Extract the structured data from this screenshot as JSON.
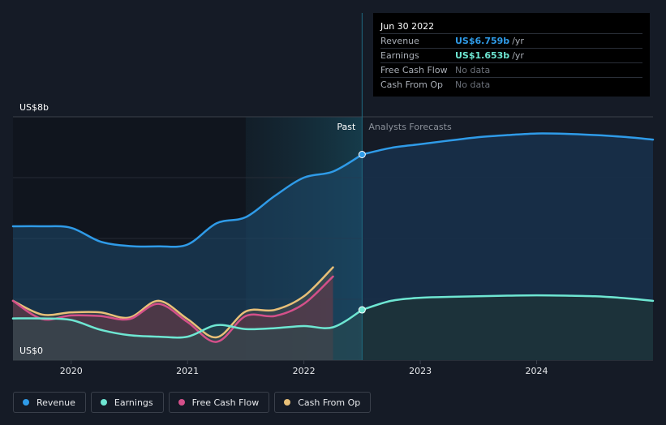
{
  "colors": {
    "revenue": "#2f9be8",
    "earnings": "#6ee6d2",
    "free_cash_flow": "#d4508a",
    "cash_from_op": "#e8c078",
    "background": "#151b26"
  },
  "tooltip": {
    "date": "Jun 30 2022",
    "rows": [
      {
        "label": "Revenue",
        "value": "US$6.759b",
        "unit": "/yr",
        "color": "#2f9be8"
      },
      {
        "label": "Earnings",
        "value": "US$1.653b",
        "unit": "/yr",
        "color": "#6ee6d2"
      },
      {
        "label": "Free Cash Flow",
        "value": "No data",
        "unit": "",
        "color": ""
      },
      {
        "label": "Cash From Op",
        "value": "No data",
        "unit": "",
        "color": ""
      }
    ]
  },
  "legend": [
    {
      "label": "Revenue",
      "color": "#2f9be8"
    },
    {
      "label": "Earnings",
      "color": "#6ee6d2"
    },
    {
      "label": "Free Cash Flow",
      "color": "#d4508a"
    },
    {
      "label": "Cash From Op",
      "color": "#e8c078"
    }
  ],
  "chart_data": {
    "type": "line",
    "title": "",
    "xlabel": "",
    "ylabel": "",
    "y_top_label": "US$8b",
    "y_bottom_label": "US$0",
    "ylim": [
      0,
      8
    ],
    "xlim": [
      2019.5,
      2025.0
    ],
    "x_ticks": [
      {
        "value": 2020,
        "label": "2020"
      },
      {
        "value": 2021,
        "label": "2021"
      },
      {
        "value": 2022,
        "label": "2022"
      },
      {
        "value": 2023,
        "label": "2023"
      },
      {
        "value": 2024,
        "label": "2024"
      }
    ],
    "gridlines_y": [
      0,
      2,
      4,
      6,
      8
    ],
    "past_label": "Past",
    "forecast_label": "Analysts Forecasts",
    "divider_x": 2022.5,
    "highlight_range": [
      2021.5,
      2022.5
    ],
    "series": [
      {
        "name": "Revenue",
        "key": "revenue",
        "x": [
          2019.5,
          2019.75,
          2020.0,
          2020.25,
          2020.5,
          2020.75,
          2021.0,
          2021.25,
          2021.5,
          2021.75,
          2022.0,
          2022.25,
          2022.5
        ],
        "y": [
          4.4,
          4.4,
          4.35,
          3.9,
          3.75,
          3.74,
          3.8,
          4.5,
          4.7,
          5.4,
          6.0,
          6.2,
          6.76
        ],
        "forecast_x": [
          2022.5,
          2022.75,
          2023.0,
          2023.25,
          2023.5,
          2023.75,
          2024.0,
          2024.25,
          2024.5,
          2024.75,
          2025.0
        ],
        "forecast_y": [
          6.76,
          6.98,
          7.1,
          7.22,
          7.33,
          7.4,
          7.45,
          7.44,
          7.4,
          7.34,
          7.25
        ]
      },
      {
        "name": "Earnings",
        "key": "earnings",
        "x": [
          2019.5,
          2019.75,
          2020.0,
          2020.25,
          2020.5,
          2020.75,
          2021.0,
          2021.25,
          2021.5,
          2021.75,
          2022.0,
          2022.25,
          2022.5
        ],
        "y": [
          1.37,
          1.37,
          1.32,
          1.0,
          0.82,
          0.77,
          0.77,
          1.15,
          1.02,
          1.05,
          1.12,
          1.08,
          1.653
        ],
        "forecast_x": [
          2022.5,
          2022.75,
          2023.0,
          2023.25,
          2023.5,
          2023.75,
          2024.0,
          2024.25,
          2024.5,
          2024.75,
          2025.0
        ],
        "forecast_y": [
          1.653,
          1.95,
          2.05,
          2.08,
          2.1,
          2.12,
          2.13,
          2.12,
          2.1,
          2.04,
          1.95
        ]
      },
      {
        "name": "Free Cash Flow",
        "key": "free_cash_flow",
        "x": [
          2019.5,
          2019.75,
          2020.0,
          2020.25,
          2020.5,
          2020.75,
          2021.0,
          2021.25,
          2021.5,
          2021.75,
          2022.0,
          2022.25
        ],
        "y": [
          1.95,
          1.35,
          1.47,
          1.45,
          1.35,
          1.85,
          1.25,
          0.6,
          1.45,
          1.45,
          1.85,
          2.75
        ]
      },
      {
        "name": "Cash From Op",
        "key": "cash_from_op",
        "x": [
          2019.5,
          2019.75,
          2020.0,
          2020.25,
          2020.5,
          2020.75,
          2021.0,
          2021.25,
          2021.5,
          2021.75,
          2022.0,
          2022.25
        ],
        "y": [
          1.95,
          1.5,
          1.57,
          1.57,
          1.4,
          1.95,
          1.35,
          0.75,
          1.6,
          1.65,
          2.1,
          3.05
        ]
      }
    ]
  }
}
